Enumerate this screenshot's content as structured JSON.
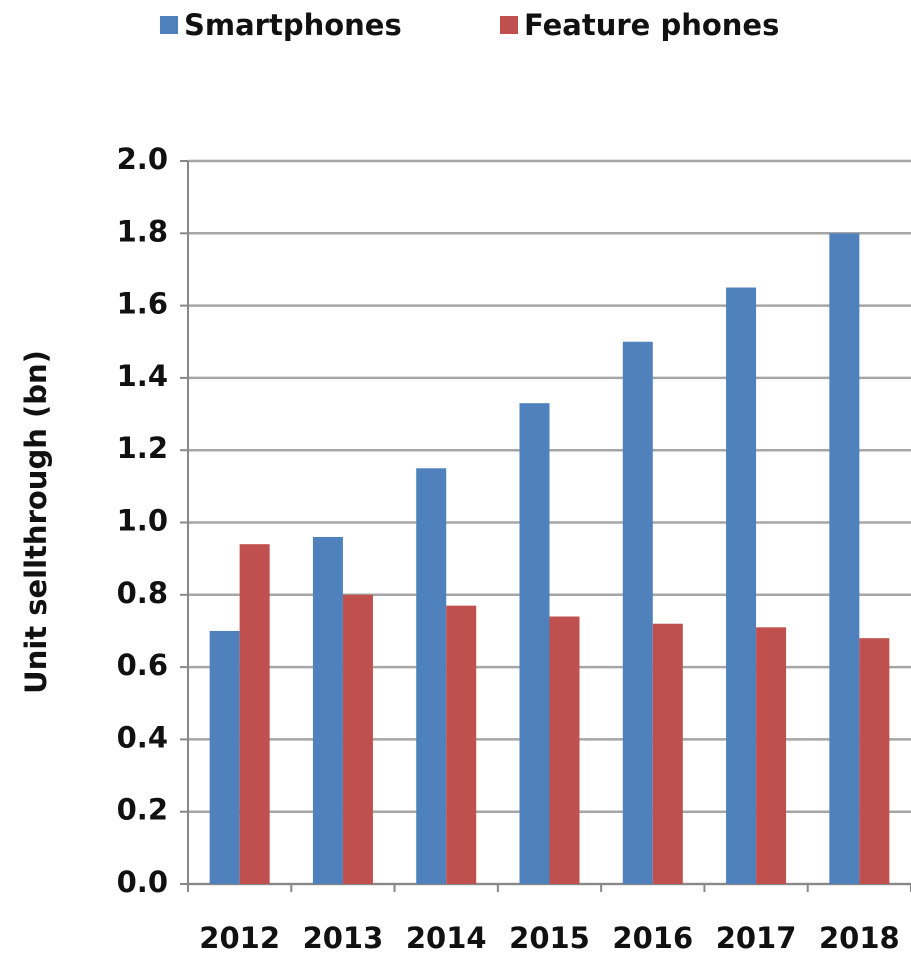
{
  "chart_data": {
    "type": "bar",
    "y_label": "Unit sellthrough (bn)",
    "categories": [
      "2012",
      "2013",
      "2014",
      "2015",
      "2016",
      "2017",
      "2018"
    ],
    "series": [
      {
        "name": "Smartphones",
        "color": "#4f81bd",
        "values": [
          0.7,
          0.96,
          1.15,
          1.33,
          1.5,
          1.65,
          1.8
        ]
      },
      {
        "name": "Feature phones",
        "color": "#c0504d",
        "values": [
          0.94,
          0.8,
          0.77,
          0.74,
          0.72,
          0.71,
          0.68
        ]
      }
    ],
    "ylim": [
      0,
      2
    ],
    "yticks": [
      {
        "value": 0,
        "label": "0.0"
      },
      0.2,
      0.4,
      0.6,
      0.8,
      {
        "value": 1,
        "label": "1.0"
      },
      1.2,
      1.4,
      1.6,
      1.8,
      {
        "value": 2,
        "label": "2.0"
      }
    ],
    "grid": true,
    "legend": "top"
  }
}
